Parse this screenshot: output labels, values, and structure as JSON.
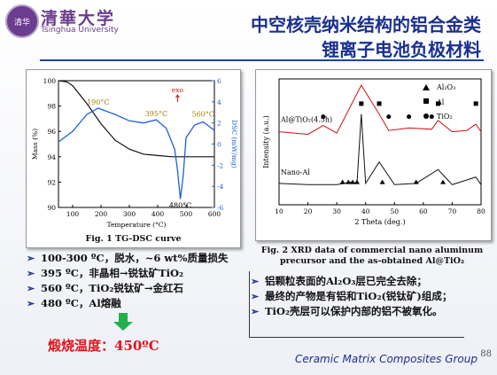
{
  "header": {
    "logo_cn": "清華大学",
    "logo_en": "Tsinghua University",
    "title_line1": "中空核壳纳米结构的铝合金类",
    "title_line2": "锂离子电池负极材料"
  },
  "fig1_caption": "Fig. 1 TG-DSC curve",
  "fig2_caption_l1": "Fig. 2 XRD data of commercial nano aluminum",
  "fig2_caption_l2": "precursor and the as-obtained Al@TiO₂",
  "left_bullets": [
    "100-300 ºC，脱水，~6 wt%质量损失",
    "395 ºC，非晶相→锐钛矿TiO₂",
    "560 ºC，TiO₂锐钛矿→金红石",
    "480 ºC，Al熔融"
  ],
  "right_bullets": [
    "铝颗粒表面的Al₂O₃层已完全去除；",
    "最终的产物是有铝和TiO₂(锐钛矿)组成；",
    "TiO₂壳层可以保护内部的铝不被氧化。"
  ],
  "calcination_temp": "煅烧温度：450ºC",
  "footer": "Ceramic Matrix Composites Group",
  "page_number": "88",
  "colors": {
    "title": "#1b2f8f",
    "tg_curve": "#111111",
    "dsc_curve": "#1f5fd8",
    "annotation": "#a67c00",
    "exo": "#d01010",
    "highlight": "#e0151b"
  },
  "chart_data": [
    {
      "type": "line",
      "title": "",
      "xlabel": "Temperature (°C)",
      "ylabel": "Mass (%)",
      "y2label": "DSC (mW/mg)",
      "xlim": [
        50,
        600
      ],
      "ylim": [
        90,
        100
      ],
      "y2lim": [
        -6,
        6
      ],
      "xticks": [
        100,
        200,
        300,
        400,
        500,
        600
      ],
      "yticks": [
        90,
        92,
        94,
        96,
        98,
        100
      ],
      "y2ticks": [
        -6,
        -4,
        -2,
        0,
        2,
        4,
        6
      ],
      "annotations": [
        "190°C",
        "395°C",
        "560°C",
        "480°C",
        "exo"
      ],
      "series": [
        {
          "axis": "left",
          "x": [
            50,
            80,
            100,
            150,
            200,
            250,
            300,
            350,
            400,
            450,
            500,
            550,
            600
          ],
          "y": [
            100,
            99.9,
            99.6,
            98.2,
            96.6,
            95.3,
            94.6,
            94.2,
            94.1,
            94.0,
            94.0,
            94.0,
            94.0
          ]
        },
        {
          "axis": "right",
          "x": [
            50,
            100,
            150,
            190,
            250,
            300,
            350,
            395,
            430,
            460,
            470,
            480,
            490,
            500,
            530,
            560,
            600
          ],
          "y": [
            0.2,
            1.2,
            2.8,
            3.4,
            2.8,
            2.2,
            2.0,
            2.3,
            1.5,
            -0.5,
            -2.5,
            -5.2,
            -3.0,
            0.6,
            1.8,
            2.1,
            1.3
          ]
        }
      ],
      "grid": false
    },
    {
      "type": "line",
      "title": "",
      "xlabel": "2 Theta (deg.)",
      "ylabel": "Intensity (a.u.)",
      "xlim": [
        10,
        80
      ],
      "xticks": [
        10,
        20,
        30,
        40,
        50,
        60,
        70,
        80
      ],
      "legend": [
        "Al₂O₃",
        "Al",
        "TiO₂"
      ],
      "series": [
        {
          "name": "Al@TiO₂(4.5h)",
          "x": [
            10,
            20,
            25.3,
            30,
            38.5,
            44.7,
            48,
            55,
            62.9,
            65.1,
            70,
            75,
            78.2,
            80
          ],
          "y": [
            0.58,
            0.56,
            0.63,
            0.57,
            0.95,
            0.72,
            0.59,
            0.61,
            0.6,
            0.67,
            0.58,
            0.59,
            0.64,
            0.58
          ]
        },
        {
          "name": "Nano-Al",
          "x": [
            10,
            20,
            30,
            35,
            37,
            38.5,
            40,
            44.7,
            50,
            57.5,
            65.1,
            70,
            78.2,
            80
          ],
          "y": [
            0.17,
            0.16,
            0.16,
            0.18,
            0.17,
            0.72,
            0.17,
            0.34,
            0.16,
            0.17,
            0.28,
            0.16,
            0.22,
            0.16
          ]
        }
      ],
      "series_labels": [
        "Al@TiO₂(4.5h)",
        "Nano-Al"
      ],
      "grid": false
    }
  ]
}
